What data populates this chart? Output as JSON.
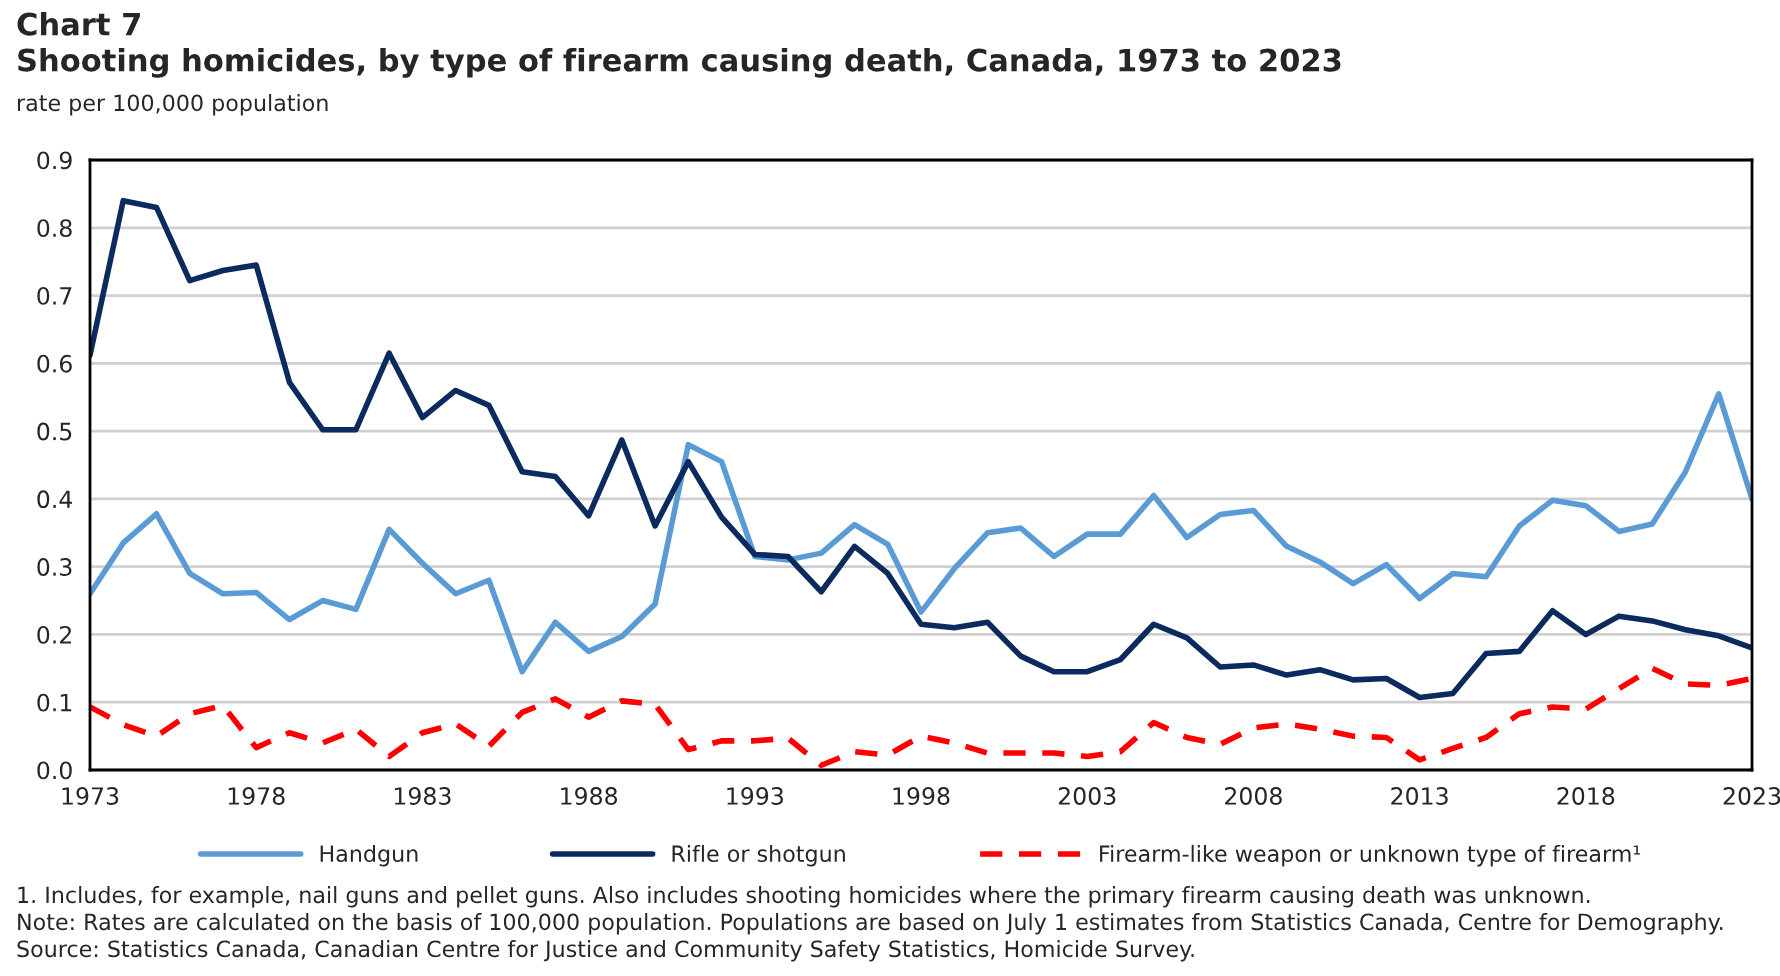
{
  "chart_data": {
    "type": "line",
    "title": "Chart 7",
    "subtitle": "Shooting homicides, by type of firearm causing death, Canada, 1973 to 2023",
    "ylabel": "rate per 100,000 population",
    "x": [
      1973,
      1974,
      1975,
      1976,
      1977,
      1978,
      1979,
      1980,
      1981,
      1982,
      1983,
      1984,
      1985,
      1986,
      1987,
      1988,
      1989,
      1990,
      1991,
      1992,
      1993,
      1994,
      1995,
      1996,
      1997,
      1998,
      1999,
      2000,
      2001,
      2002,
      2003,
      2004,
      2005,
      2006,
      2007,
      2008,
      2009,
      2010,
      2011,
      2012,
      2013,
      2014,
      2015,
      2016,
      2017,
      2018,
      2019,
      2020,
      2021,
      2022,
      2023
    ],
    "series": [
      {
        "name": "Handgun",
        "color": "#5b9bd5",
        "line_style": "solid",
        "values": [
          0.26,
          0.335,
          0.378,
          0.29,
          0.26,
          0.262,
          0.222,
          0.25,
          0.237,
          0.355,
          0.305,
          0.26,
          0.28,
          0.145,
          0.218,
          0.175,
          0.197,
          0.245,
          0.48,
          0.455,
          0.315,
          0.31,
          0.32,
          0.362,
          0.333,
          0.233,
          0.297,
          0.35,
          0.357,
          0.315,
          0.348,
          0.348,
          0.405,
          0.343,
          0.377,
          0.383,
          0.33,
          0.307,
          0.275,
          0.303,
          0.253,
          0.29,
          0.285,
          0.36,
          0.398,
          0.39,
          0.352,
          0.363,
          0.44,
          0.555,
          0.4
        ]
      },
      {
        "name": "Rifle or shotgun",
        "color": "#0b2a5e",
        "line_style": "solid",
        "values": [
          0.612,
          0.84,
          0.83,
          0.722,
          0.737,
          0.745,
          0.572,
          0.502,
          0.502,
          0.615,
          0.52,
          0.56,
          0.538,
          0.44,
          0.433,
          0.375,
          0.487,
          0.36,
          0.455,
          0.373,
          0.318,
          0.315,
          0.263,
          0.33,
          0.29,
          0.215,
          0.21,
          0.218,
          0.168,
          0.145,
          0.145,
          0.163,
          0.215,
          0.195,
          0.152,
          0.155,
          0.14,
          0.148,
          0.133,
          0.135,
          0.107,
          0.113,
          0.172,
          0.175,
          0.235,
          0.2,
          0.227,
          0.22,
          0.207,
          0.198,
          0.18
        ]
      },
      {
        "name": "Firearm-like weapon or unknown type of firearm¹",
        "color": "#ff0000",
        "line_style": "dashed",
        "values": [
          0.093,
          0.067,
          0.05,
          0.083,
          0.095,
          0.033,
          0.055,
          0.04,
          0.06,
          0.02,
          0.055,
          0.068,
          0.035,
          0.085,
          0.105,
          0.078,
          0.102,
          0.097,
          0.03,
          0.043,
          0.043,
          0.047,
          0.007,
          0.027,
          0.022,
          0.05,
          0.04,
          0.025,
          0.025,
          0.025,
          0.02,
          0.027,
          0.07,
          0.048,
          0.038,
          0.062,
          0.068,
          0.06,
          0.05,
          0.048,
          0.015,
          0.032,
          0.048,
          0.083,
          0.093,
          0.09,
          0.12,
          0.15,
          0.127,
          0.125,
          0.135
        ]
      }
    ],
    "xlim": [
      1973,
      2023
    ],
    "xticks": [
      1973,
      1978,
      1983,
      1988,
      1993,
      1998,
      2003,
      2008,
      2013,
      2018,
      2023
    ],
    "ylim": [
      0,
      0.9
    ],
    "yticks": [
      {
        "value": 0,
        "label": "0.0"
      },
      0.1,
      0.2,
      0.3,
      0.4,
      0.5,
      0.6,
      0.7,
      0.8,
      0.9
    ],
    "grid": "y",
    "legend": "bottom",
    "marker": "none",
    "annotations": [
      "1. Includes, for example, nail guns and pellet guns. Also includes shooting homicides where the primary firearm causing death was unknown.",
      "Note: Rates are calculated on the basis of 100,000 population. Populations are based on July 1 estimates from Statistics Canada, Centre for Demography.",
      "Source: Statistics Canada, Canadian Centre for Justice and Community Safety Statistics, Homicide Survey."
    ]
  }
}
